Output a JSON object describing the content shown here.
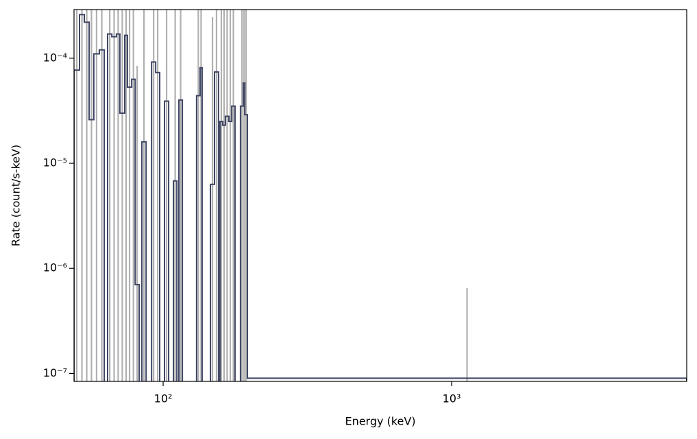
{
  "chart_data": {
    "type": "step",
    "xlabel": "Energy (keV)",
    "ylabel": "Rate (count/s-keV)",
    "xscale": "log",
    "yscale": "log",
    "xlim": [
      49.1,
      6530
    ],
    "ylim": [
      8.4e-08,
      0.00029
    ],
    "xticks": [
      {
        "value": 100,
        "label": "10²"
      },
      {
        "value": 1000,
        "label": "10³"
      }
    ],
    "yticks": [
      {
        "value": 1e-07,
        "label": "10⁻⁷"
      },
      {
        "value": 1e-06,
        "label": "10⁻⁶"
      },
      {
        "value": 1e-05,
        "label": "10⁻⁵"
      },
      {
        "value": 0.0001,
        "label": "10⁻⁴"
      }
    ],
    "series": [
      {
        "color": "#3d4463",
        "error_color": "#b0b0b0",
        "bins": [
          49.1,
          51.3,
          53.3,
          55.4,
          57.5,
          60.1,
          62.5,
          64.2,
          66.4,
          68.9,
          70.8,
          73.6,
          75.2,
          77.8,
          80.0,
          82.6,
          84.4,
          87.3,
          91.2,
          94.2,
          97.3,
          101.1,
          104.5,
          108.6,
          111.6,
          113.4,
          116.6,
          130.6,
          134.3,
          136.5,
          145.9,
          150.7,
          155.6,
          157.4,
          160.9,
          164.4,
          169.0,
          172.9,
          177.5,
          185.4,
          189.7,
          191.9,
          195.9,
          6530
        ],
        "values": [
          7.7e-05,
          0.00026,
          0.00022,
          2.6e-05,
          0.00011,
          0.00012,
          null,
          0.00017,
          0.00016,
          0.00017,
          3e-05,
          0.000165,
          5.3e-05,
          6.3e-05,
          7e-07,
          null,
          1.6e-05,
          null,
          9.2e-05,
          7.3e-05,
          null,
          3.9e-05,
          null,
          6.8e-06,
          null,
          4e-05,
          null,
          4.4e-05,
          8.1e-05,
          null,
          6.3e-06,
          7.4e-05,
          null,
          2.5e-05,
          2.3e-05,
          2.8e-05,
          2.5e-05,
          3.5e-05,
          null,
          3.5e-05,
          5.8e-05,
          2.9e-05,
          9e-08
        ],
        "errors": [
          0.0003,
          0.0003,
          0.0003,
          0.0003,
          0.0003,
          0.0003,
          null,
          0.0003,
          0.0003,
          0.0003,
          0.0003,
          0.0003,
          0.0003,
          0.0003,
          8.4e-05,
          null,
          0.0003,
          null,
          0.0003,
          0.0003,
          null,
          0.0003,
          null,
          0.0003,
          null,
          0.0003,
          null,
          0.0003,
          0.0003,
          null,
          0.00024,
          0.0003,
          null,
          0.0003,
          0.0003,
          0.0003,
          0.0003,
          0.0003,
          null,
          0.0003,
          0.0003,
          0.0003,
          5.6e-07
        ]
      }
    ]
  }
}
